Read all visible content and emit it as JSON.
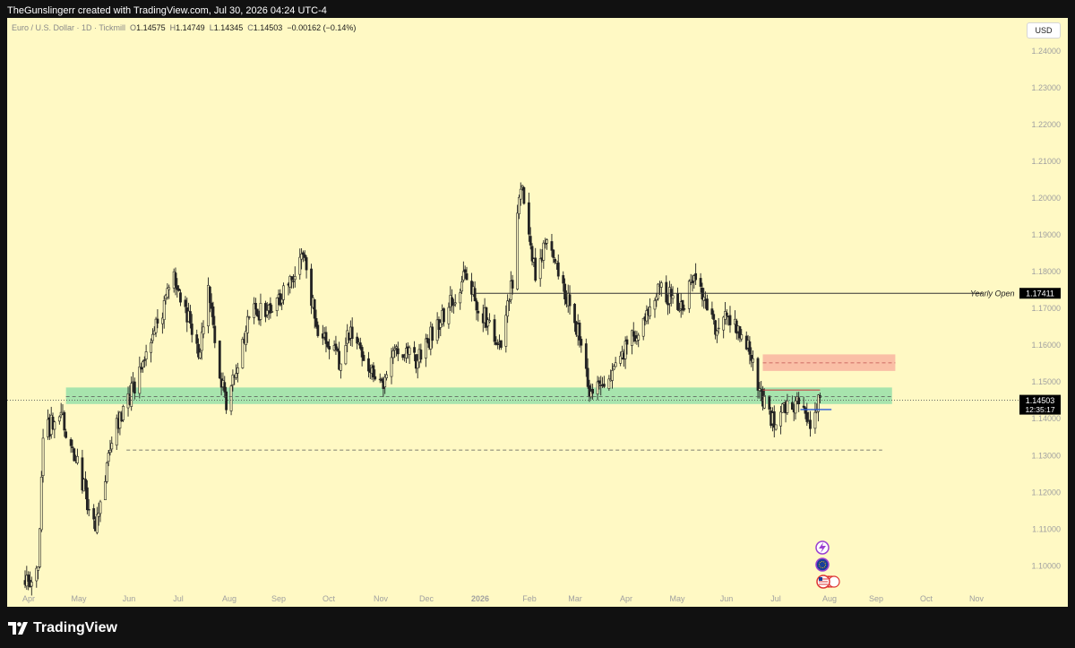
{
  "header": {
    "attribution": "TheGunslingerr created with TradingView.com, Jul 30, 2026 04:24 UTC-4"
  },
  "legend": {
    "symbol": "Euro / U.S. Dollar · 1D · Tickmill",
    "o_key": "O",
    "o_val": "1.14575",
    "h_key": "H",
    "h_val": "1.14749",
    "l_key": "L",
    "l_val": "1.14345",
    "c_key": "C",
    "c_val": "1.14503",
    "change": "−0.00162 (−0.14%)"
  },
  "currency_button": "USD",
  "footer": {
    "brand": "TradingView"
  },
  "colors": {
    "background": "#fff9c4",
    "candle": "#222222",
    "demand_zone": "#5fd49a",
    "supply_zone": "#f8a79a",
    "price_tag": "#000000",
    "blue_line": "#2b5bd7",
    "red_line": "#c84a4a"
  },
  "chart_data": {
    "type": "candlestick",
    "symbol": "EURUSD",
    "timeframe": "1D",
    "ylim": [
      1.094,
      1.248
    ],
    "price_ticks": [
      "1.24000",
      "1.23000",
      "1.22000",
      "1.21000",
      "1.20000",
      "1.19000",
      "1.18000",
      "1.17000",
      "1.16000",
      "1.15000",
      "1.14000",
      "1.13000",
      "1.12000",
      "1.11000",
      "1.10000"
    ],
    "time_ticks": [
      "Apr",
      "May",
      "Jun",
      "Jul",
      "Aug",
      "Sep",
      "Oct",
      "Nov",
      "Dec",
      "2026",
      "Feb",
      "Mar",
      "Apr",
      "May",
      "Jun",
      "Jul",
      "Aug",
      "Sep",
      "Oct",
      "Nov"
    ],
    "path_points": [
      [
        "2025-03-31",
        1.096
      ],
      [
        "2025-04-08",
        1.0985
      ],
      [
        "2025-04-11",
        1.135
      ],
      [
        "2025-04-21",
        1.142
      ],
      [
        "2025-05-01",
        1.13
      ],
      [
        "2025-05-12",
        1.11
      ],
      [
        "2025-05-26",
        1.138
      ],
      [
        "2025-06-12",
        1.156
      ],
      [
        "2025-06-30",
        1.178
      ],
      [
        "2025-07-16",
        1.158
      ],
      [
        "2025-07-21",
        1.174
      ],
      [
        "2025-08-01",
        1.142
      ],
      [
        "2025-08-15",
        1.169
      ],
      [
        "2025-08-29",
        1.169
      ],
      [
        "2025-09-17",
        1.185
      ],
      [
        "2025-09-25",
        1.166
      ],
      [
        "2025-10-09",
        1.156
      ],
      [
        "2025-10-16",
        1.164
      ],
      [
        "2025-11-04",
        1.148
      ],
      [
        "2025-11-13",
        1.16
      ],
      [
        "2025-11-25",
        1.156
      ],
      [
        "2025-12-24",
        1.178
      ],
      [
        "2026-01-08",
        1.166
      ],
      [
        "2026-01-16",
        1.16
      ],
      [
        "2026-01-23",
        1.178
      ],
      [
        "2026-01-28",
        1.204
      ],
      [
        "2026-02-06",
        1.18
      ],
      [
        "2026-02-13",
        1.19
      ],
      [
        "2026-03-04",
        1.163
      ],
      [
        "2026-03-12",
        1.146
      ],
      [
        "2026-03-27",
        1.154
      ],
      [
        "2026-04-23",
        1.176
      ],
      [
        "2026-05-06",
        1.17
      ],
      [
        "2026-05-13",
        1.178
      ],
      [
        "2026-05-27",
        1.165
      ],
      [
        "2026-06-05",
        1.168
      ],
      [
        "2026-06-17",
        1.16
      ],
      [
        "2026-06-24",
        1.146
      ],
      [
        "2026-07-01",
        1.139
      ],
      [
        "2026-07-08",
        1.142
      ],
      [
        "2026-07-15",
        1.145
      ],
      [
        "2026-07-24",
        1.138
      ],
      [
        "2026-07-30",
        1.145
      ]
    ],
    "current_price": "1.14503",
    "countdown": "12:35:17",
    "zones": [
      {
        "name": "demand",
        "low": 1.144,
        "high": 1.1485,
        "from": "2025-04-25",
        "to": "2026-09-12"
      },
      {
        "name": "supply",
        "low": 1.153,
        "high": 1.1575,
        "from": "2026-06-25",
        "to": "2026-09-14"
      }
    ],
    "lines": [
      {
        "name": "yearly-open",
        "price": 1.17411,
        "from": "2025-12-31",
        "to": "2026-11-06",
        "label": "Yearly Open",
        "price_label": "1.17411"
      },
      {
        "name": "zone-mid",
        "price": 1.146,
        "from": "2025-04-25",
        "to": "2026-09-12",
        "style": "dashed"
      },
      {
        "name": "supply-mid",
        "price": 1.1552,
        "from": "2026-06-25",
        "to": "2026-09-14",
        "style": "dashed"
      },
      {
        "name": "range-low",
        "price": 1.1315,
        "from": "2025-06-01",
        "to": "2026-09-06",
        "style": "dashed"
      },
      {
        "name": "range-top",
        "price": 1.1478,
        "from": "2026-06-25",
        "to": "2026-07-30",
        "style": "solid-red"
      },
      {
        "name": "range-support",
        "price": 1.1425,
        "from": "2026-07-18",
        "to": "2026-08-06",
        "style": "solid-blue"
      }
    ],
    "events": [
      "flash-icon",
      "eu-flag-icon",
      "us-flag-icon"
    ]
  }
}
